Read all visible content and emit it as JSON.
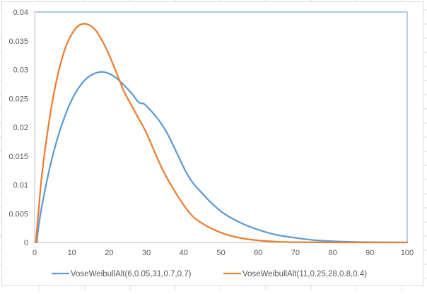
{
  "chart_data": {
    "type": "line",
    "title": "",
    "xlabel": "",
    "ylabel": "",
    "xlim": [
      0,
      100
    ],
    "ylim": [
      0,
      0.04
    ],
    "x_ticks": [
      "0",
      "10",
      "20",
      "30",
      "40",
      "50",
      "60",
      "70",
      "80",
      "90",
      "100"
    ],
    "y_ticks": [
      "0",
      "0.005",
      "0.01",
      "0.015",
      "0.02",
      "0.025",
      "0.03",
      "0.035",
      "0.04"
    ],
    "grid": false,
    "legend_position": "bottom",
    "series": [
      {
        "name": "VoseWeibullAlt(6,0.05,31,0.7,0.7)",
        "color": "#5b9bd5",
        "x": [
          0.6,
          1,
          2,
          4,
          6,
          8,
          10,
          12,
          14,
          16,
          18,
          20,
          22,
          24,
          26,
          28,
          30,
          35,
          41,
          45,
          50,
          55,
          60,
          65,
          70,
          75,
          80,
          85,
          90,
          100
        ],
        "y": [
          0,
          0.0025,
          0.0065,
          0.0128,
          0.0178,
          0.0217,
          0.0248,
          0.027,
          0.0285,
          0.0293,
          0.0296,
          0.0293,
          0.0285,
          0.0273,
          0.0259,
          0.0243,
          0.0237,
          0.0196,
          0.0118,
          0.0085,
          0.0054,
          0.0035,
          0.0022,
          0.0013,
          0.0008,
          0.0004,
          0.0002,
          0.0001,
          3e-05,
          0
        ]
      },
      {
        "name": "VoseWeibullAlt(11,0.25,28,0.8,0.4)",
        "color": "#ed7d31",
        "x": [
          0.3,
          1,
          2,
          4,
          6,
          8,
          10,
          12,
          14,
          16,
          18,
          20,
          22,
          24,
          26,
          28,
          30,
          35,
          41,
          45,
          50,
          55,
          60,
          65,
          70,
          80,
          100
        ],
        "y": [
          0,
          0.005,
          0.012,
          0.0215,
          0.0285,
          0.0333,
          0.0362,
          0.0377,
          0.0379,
          0.0371,
          0.0352,
          0.0325,
          0.0294,
          0.0262,
          0.0238,
          0.0214,
          0.019,
          0.0118,
          0.0056,
          0.0033,
          0.0017,
          0.0008,
          0.00035,
          0.00012,
          4e-05,
          0,
          0
        ]
      }
    ]
  }
}
